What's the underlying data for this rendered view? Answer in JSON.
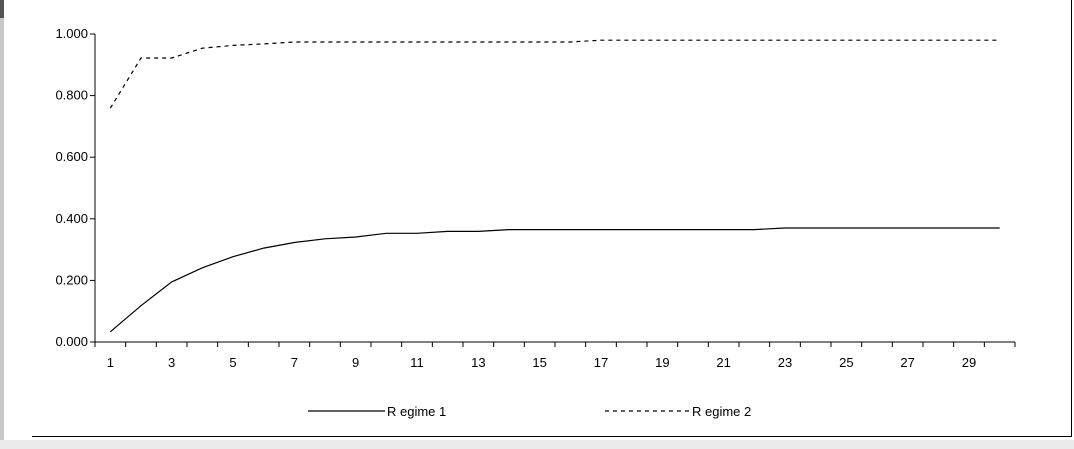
{
  "chart_data": {
    "type": "line",
    "title": "",
    "xlabel": "",
    "ylabel": "",
    "x": [
      1,
      2,
      3,
      4,
      5,
      6,
      7,
      8,
      9,
      10,
      11,
      12,
      13,
      14,
      15,
      16,
      17,
      18,
      19,
      20,
      21,
      22,
      23,
      24,
      25,
      26,
      27,
      28,
      29,
      30
    ],
    "x_tick_labels": [
      "1",
      "3",
      "5",
      "7",
      "9",
      "11",
      "13",
      "15",
      "17",
      "19",
      "21",
      "23",
      "25",
      "27",
      "29"
    ],
    "y_tick_labels": [
      "0.000",
      "0.200",
      "0.400",
      "0.600",
      "0.800",
      "1.000"
    ],
    "ylim": [
      0,
      1
    ],
    "grid": false,
    "legend_position": "bottom",
    "series": [
      {
        "name": "R egime 1",
        "style": "solid",
        "values": [
          0.033,
          0.118,
          0.195,
          0.241,
          0.277,
          0.305,
          0.323,
          0.335,
          0.341,
          0.353,
          0.353,
          0.359,
          0.359,
          0.365,
          0.365,
          0.365,
          0.365,
          0.365,
          0.365,
          0.365,
          0.365,
          0.365,
          0.37,
          0.37,
          0.37,
          0.37,
          0.37,
          0.37,
          0.37,
          0.37
        ]
      },
      {
        "name": "R egime 2",
        "style": "dashed",
        "values": [
          0.759,
          0.922,
          0.922,
          0.954,
          0.963,
          0.968,
          0.974,
          0.974,
          0.974,
          0.974,
          0.974,
          0.974,
          0.974,
          0.974,
          0.974,
          0.974,
          0.98,
          0.98,
          0.98,
          0.98,
          0.98,
          0.98,
          0.98,
          0.98,
          0.98,
          0.98,
          0.98,
          0.98,
          0.98,
          0.98
        ]
      }
    ]
  }
}
